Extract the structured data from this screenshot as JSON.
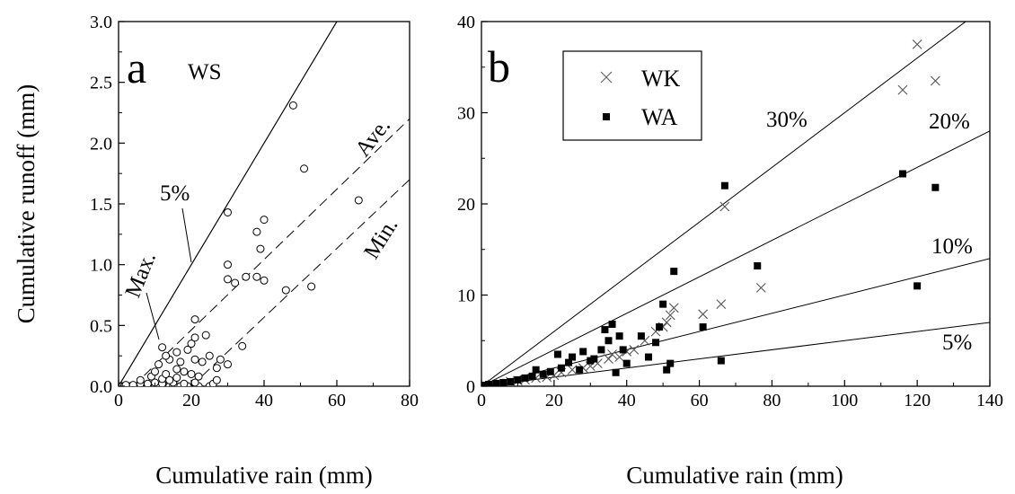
{
  "chart_data": [
    {
      "type": "scatter",
      "panel_label": "a",
      "site_label": "WS",
      "xlabel": "Cumulative rain (mm)",
      "ylabel": "Cumulative runoff (mm)",
      "xlim": [
        0,
        80
      ],
      "ylim": [
        0,
        3.0
      ],
      "xticks": [
        "0",
        "20",
        "40",
        "60",
        "80"
      ],
      "yticks": [
        "0.0",
        "0.5",
        "1.0",
        "1.5",
        "2.0",
        "2.5",
        "3.0"
      ],
      "marker": "open-circle",
      "points": [
        [
          0.5,
          0
        ],
        [
          1,
          0
        ],
        [
          1.5,
          0
        ],
        [
          2,
          0
        ],
        [
          2.5,
          0
        ],
        [
          3,
          0
        ],
        [
          4,
          0
        ],
        [
          5,
          0
        ],
        [
          6,
          0
        ],
        [
          7,
          0
        ],
        [
          8,
          0
        ],
        [
          9,
          0
        ],
        [
          10,
          0
        ],
        [
          11,
          0
        ],
        [
          13,
          0
        ],
        [
          14,
          0
        ],
        [
          15,
          0
        ],
        [
          16,
          0
        ],
        [
          17,
          0
        ],
        [
          19,
          0
        ],
        [
          22,
          0
        ],
        [
          25,
          0
        ],
        [
          2,
          0.01
        ],
        [
          4,
          0.01
        ],
        [
          6,
          0.02
        ],
        [
          8,
          0.02
        ],
        [
          10,
          0.03
        ],
        [
          12,
          0.02
        ],
        [
          15,
          0.03
        ],
        [
          18,
          0.02
        ],
        [
          21,
          0.03
        ],
        [
          26,
          0.02
        ],
        [
          6,
          0.05
        ],
        [
          9,
          0.08
        ],
        [
          12,
          0.06
        ],
        [
          14,
          0.05
        ],
        [
          16,
          0.07
        ],
        [
          27,
          0.05
        ],
        [
          10,
          0.12
        ],
        [
          13,
          0.1
        ],
        [
          16,
          0.14
        ],
        [
          18,
          0.12
        ],
        [
          20,
          0.1
        ],
        [
          22,
          0.08
        ],
        [
          27,
          0.15
        ],
        [
          11,
          0.18
        ],
        [
          14,
          0.22
        ],
        [
          17,
          0.2
        ],
        [
          21,
          0.22
        ],
        [
          23,
          0.2
        ],
        [
          13,
          0.25
        ],
        [
          16,
          0.28
        ],
        [
          19,
          0.3
        ],
        [
          25,
          0.25
        ],
        [
          28,
          0.22
        ],
        [
          30,
          0.18
        ],
        [
          12,
          0.32
        ],
        [
          20,
          0.35
        ],
        [
          21,
          0.4
        ],
        [
          24,
          0.42
        ],
        [
          34,
          0.33
        ],
        [
          21,
          0.55
        ],
        [
          30,
          0.88
        ],
        [
          32,
          0.85
        ],
        [
          38,
          0.9
        ],
        [
          40,
          0.87
        ],
        [
          30,
          1.0
        ],
        [
          35,
          0.9
        ],
        [
          46,
          0.79
        ],
        [
          53,
          0.82
        ],
        [
          39,
          1.13
        ],
        [
          30,
          1.43
        ],
        [
          38,
          1.27
        ],
        [
          40,
          1.37
        ],
        [
          51,
          1.79
        ],
        [
          66,
          1.53
        ],
        [
          48,
          2.31
        ]
      ],
      "lines": [
        {
          "name": "Max.",
          "style": "solid",
          "x": [
            0,
            60
          ],
          "y": [
            0,
            3.0
          ]
        },
        {
          "name": "5%",
          "style": "solid",
          "x": [
            0,
            60
          ],
          "y": [
            0,
            3.0
          ]
        },
        {
          "name": "Ave.",
          "style": "dashed",
          "x": [
            4,
            80
          ],
          "y": [
            0,
            2.2
          ]
        },
        {
          "name": "Min.",
          "style": "dashed",
          "x": [
            20,
            80
          ],
          "y": [
            0,
            1.7
          ]
        }
      ],
      "annotations": [
        "5%",
        "Max.",
        "Ave.",
        "Min."
      ]
    },
    {
      "type": "scatter",
      "panel_label": "b",
      "xlabel": "Cumulative rain (mm)",
      "ylabel": "",
      "xlim": [
        0,
        140
      ],
      "ylim": [
        0,
        40
      ],
      "xticks": [
        "0",
        "20",
        "40",
        "60",
        "80",
        "100",
        "120",
        "140"
      ],
      "yticks": [
        "0",
        "10",
        "20",
        "30",
        "40"
      ],
      "legend_position": "top-left",
      "series": [
        {
          "name": "WK",
          "marker": "x",
          "points": [
            [
              1,
              0.1
            ],
            [
              3,
              0.2
            ],
            [
              5,
              0.3
            ],
            [
              8,
              0.5
            ],
            [
              10,
              0.6
            ],
            [
              12,
              0.7
            ],
            [
              15,
              0.9
            ],
            [
              18,
              1.0
            ],
            [
              20,
              1.2
            ],
            [
              22,
              1.5
            ],
            [
              25,
              1.8
            ],
            [
              28,
              2.0
            ],
            [
              30,
              2.2
            ],
            [
              32,
              2.5
            ],
            [
              35,
              3.0
            ],
            [
              36,
              3.5
            ],
            [
              38,
              3.2
            ],
            [
              40,
              3.8
            ],
            [
              42,
              4.0
            ],
            [
              45,
              5.0
            ],
            [
              48,
              6.0
            ],
            [
              50,
              6.5
            ],
            [
              51,
              7.0
            ],
            [
              52,
              7.8
            ],
            [
              53,
              8.6
            ],
            [
              61,
              7.9
            ],
            [
              66,
              9.0
            ],
            [
              67,
              19.7
            ],
            [
              77,
              10.8
            ],
            [
              116,
              32.5
            ],
            [
              120,
              37.5
            ],
            [
              125,
              33.5
            ]
          ]
        },
        {
          "name": "WA",
          "marker": "filled-square",
          "points": [
            [
              1,
              0.1
            ],
            [
              2,
              0.2
            ],
            [
              4,
              0.3
            ],
            [
              6,
              0.4
            ],
            [
              8,
              0.5
            ],
            [
              10,
              0.7
            ],
            [
              12,
              0.9
            ],
            [
              14,
              1.1
            ],
            [
              15,
              1.8
            ],
            [
              17,
              1.3
            ],
            [
              19,
              1.6
            ],
            [
              21,
              3.5
            ],
            [
              22,
              2.0
            ],
            [
              24,
              2.6
            ],
            [
              25,
              3.2
            ],
            [
              27,
              1.8
            ],
            [
              28,
              3.8
            ],
            [
              30,
              2.8
            ],
            [
              31,
              3.0
            ],
            [
              33,
              4.0
            ],
            [
              34,
              6.2
            ],
            [
              35,
              5.0
            ],
            [
              36,
              6.8
            ],
            [
              37,
              1.5
            ],
            [
              38,
              5.5
            ],
            [
              39,
              4.0
            ],
            [
              40,
              2.5
            ],
            [
              44,
              5.5
            ],
            [
              46,
              3.2
            ],
            [
              48,
              4.8
            ],
            [
              49,
              6.5
            ],
            [
              50,
              9.0
            ],
            [
              51,
              1.8
            ],
            [
              52,
              2.5
            ],
            [
              53,
              12.6
            ],
            [
              61,
              6.5
            ],
            [
              66,
              2.8
            ],
            [
              67,
              22.0
            ],
            [
              76,
              13.2
            ],
            [
              116,
              23.3
            ],
            [
              120,
              11.0
            ],
            [
              125,
              21.8
            ]
          ]
        }
      ],
      "lines": [
        {
          "name": "30%",
          "x": [
            0,
            140
          ],
          "y": [
            0,
            42
          ]
        },
        {
          "name": "20%",
          "x": [
            0,
            140
          ],
          "y": [
            0,
            28
          ]
        },
        {
          "name": "10%",
          "x": [
            0,
            140
          ],
          "y": [
            0,
            14
          ]
        },
        {
          "name": "5%",
          "x": [
            0,
            140
          ],
          "y": [
            0,
            7
          ]
        }
      ],
      "annotations": [
        "30%",
        "20%",
        "10%",
        "5%"
      ]
    }
  ]
}
